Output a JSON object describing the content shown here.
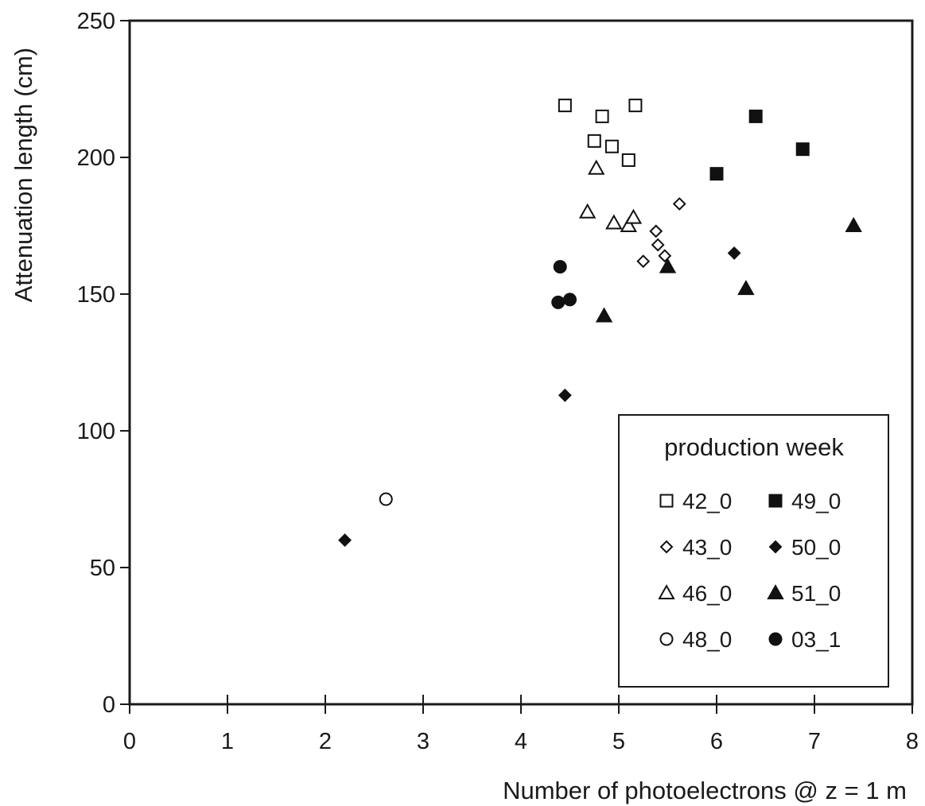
{
  "chart_data": {
    "type": "scatter",
    "title": "",
    "xlabel": "Number of photoelectrons @ z = 1 m",
    "ylabel": "Attenuation length (cm)",
    "xlim": [
      0,
      8
    ],
    "ylim": [
      0,
      250
    ],
    "x_ticks": [
      "0",
      "1",
      "2",
      "3",
      "4",
      "5",
      "6",
      "7",
      "8"
    ],
    "y_ticks": [
      "0",
      "50",
      "100",
      "150",
      "200",
      "250"
    ],
    "grid": false,
    "legend": {
      "title": "production week",
      "placement": "bottom-right",
      "columns": 2
    },
    "series": [
      {
        "name": "42_0",
        "marker": "square",
        "filled": false,
        "points": [
          [
            4.45,
            219
          ],
          [
            4.83,
            215
          ],
          [
            5.17,
            219
          ],
          [
            4.75,
            206
          ],
          [
            4.93,
            204
          ],
          [
            5.1,
            199
          ]
        ]
      },
      {
        "name": "49_0",
        "marker": "square",
        "filled": true,
        "points": [
          [
            6.0,
            194
          ],
          [
            6.4,
            215
          ],
          [
            6.88,
            203
          ]
        ]
      },
      {
        "name": "43_0",
        "marker": "diamond",
        "filled": false,
        "points": [
          [
            5.62,
            183
          ],
          [
            5.38,
            173
          ],
          [
            5.4,
            168
          ],
          [
            5.47,
            164
          ],
          [
            5.25,
            162
          ]
        ]
      },
      {
        "name": "50_0",
        "marker": "diamond",
        "filled": true,
        "points": [
          [
            2.2,
            60
          ],
          [
            4.45,
            113
          ],
          [
            6.18,
            165
          ]
        ]
      },
      {
        "name": "46_0",
        "marker": "triangle",
        "filled": false,
        "points": [
          [
            4.77,
            196
          ],
          [
            4.68,
            180
          ],
          [
            4.95,
            176
          ],
          [
            5.1,
            175
          ],
          [
            5.15,
            178
          ]
        ]
      },
      {
        "name": "51_0",
        "marker": "triangle",
        "filled": true,
        "points": [
          [
            4.85,
            142
          ],
          [
            5.5,
            160
          ],
          [
            6.3,
            152
          ],
          [
            7.4,
            175
          ]
        ]
      },
      {
        "name": "48_0",
        "marker": "circle",
        "filled": false,
        "points": [
          [
            2.62,
            75
          ]
        ]
      },
      {
        "name": "03_1",
        "marker": "circle",
        "filled": true,
        "points": [
          [
            4.38,
            147
          ],
          [
            4.4,
            160
          ],
          [
            4.5,
            148
          ]
        ]
      }
    ]
  }
}
